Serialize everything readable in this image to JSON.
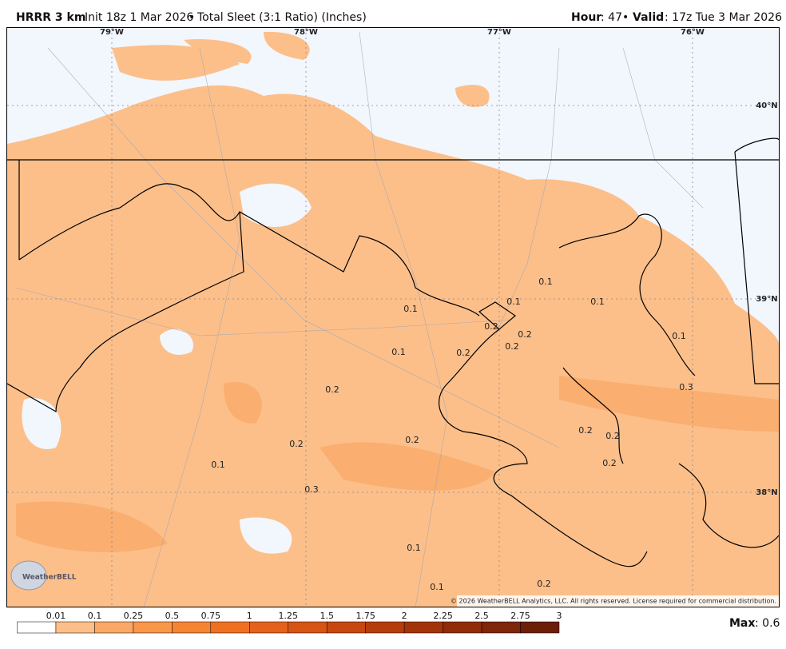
{
  "header": {
    "model": "HRRR 3 km",
    "init": "Init 18z 1 Mar 2026",
    "separator": "•",
    "field": "Total Sleet (3:1 Ratio) (Inches)",
    "hour_label": "Hour",
    "hour_value": ": 47",
    "valid_label": "Valid",
    "valid_value": ": 17z Tue 3 Mar 2026"
  },
  "map": {
    "lon_labels": [
      "79°W",
      "78°W",
      "77°W",
      "76°W"
    ],
    "lat_labels": [
      "40°N",
      "39°N",
      "38°N"
    ],
    "value_labels": [
      0.1,
      0.1,
      0.1,
      0.1,
      0.2,
      0.2,
      0.2,
      0.1,
      0.1,
      0.2,
      0.3,
      0.2,
      0.2,
      0.2,
      0.2,
      0.2,
      0.1,
      0.2,
      0.3,
      0.1,
      0.2,
      0.1
    ],
    "copyright": "© 2026 WeatherBELL Analytics, LLC. All rights reserved. License required for commercial distribution.",
    "logo": "WeatherBELL"
  },
  "legend": {
    "ticks": [
      0.01,
      0.1,
      0.25,
      0.5,
      0.75,
      1,
      1.25,
      1.5,
      1.75,
      2,
      2.25,
      2.5,
      2.75,
      3
    ],
    "colors": [
      "#ffffff",
      "#fcbf8a",
      "#f9a867",
      "#f8964a",
      "#f58433",
      "#f07022",
      "#e4621b",
      "#d65414",
      "#c7480f",
      "#b53d0c",
      "#a3340a",
      "#912c09",
      "#7f2508",
      "#6c1e06"
    ],
    "max_label": "Max",
    "max_value": ": 0.6"
  }
}
